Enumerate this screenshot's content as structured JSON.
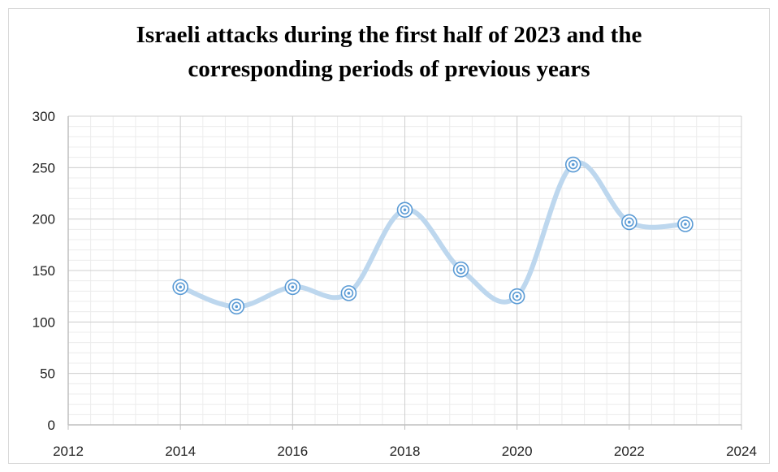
{
  "chart_data": {
    "type": "scatter",
    "title_lines": [
      "Israeli attacks during the first half of 2023 and the",
      "corresponding periods of previous years"
    ],
    "xlabel": "",
    "ylabel": "",
    "xlim": [
      2012,
      2024
    ],
    "ylim": [
      0,
      300
    ],
    "xticks": [
      2012,
      2014,
      2016,
      2018,
      2020,
      2022,
      2024
    ],
    "yticks": [
      0,
      50,
      100,
      150,
      200,
      250,
      300
    ],
    "grid": "major-and-minor",
    "smoothed_line": true,
    "series": [
      {
        "color": "#bdd7ee",
        "marker_color": "#5b9bd5",
        "points": [
          {
            "x": 2014,
            "y": 134
          },
          {
            "x": 2015,
            "y": 115
          },
          {
            "x": 2016,
            "y": 134
          },
          {
            "x": 2017,
            "y": 128
          },
          {
            "x": 2018,
            "y": 209
          },
          {
            "x": 2019,
            "y": 151
          },
          {
            "x": 2020,
            "y": 125
          },
          {
            "x": 2021,
            "y": 253
          },
          {
            "x": 2022,
            "y": 197
          },
          {
            "x": 2023,
            "y": 195
          }
        ]
      }
    ]
  }
}
